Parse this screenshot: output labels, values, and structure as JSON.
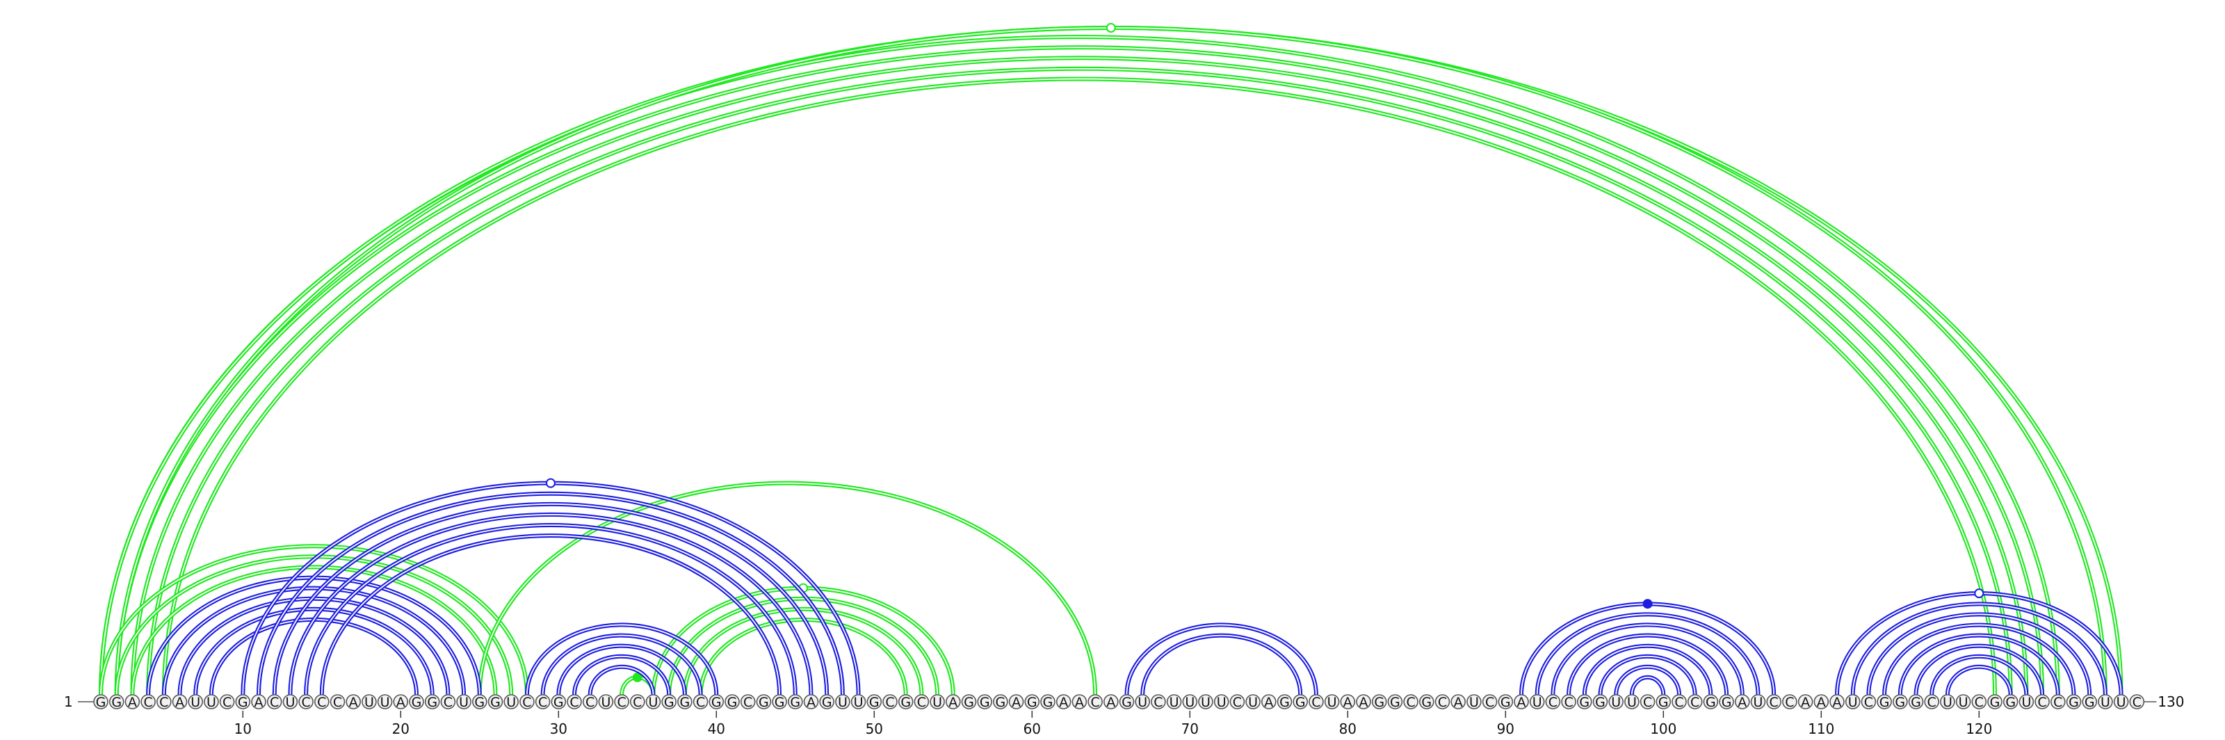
{
  "sequence": "GGACCAUUCGACUCCCAUUAGGCUGGUCCGCCUCCUGGCGGCGGGAGUUGCGCUAGGGAGGAACAGUCUUUUCUAGGCUAAGGCGCAUCGAUCCGGUUCGCCGGAUCCAAAUCGGGCUUCGGUCCGGUUC",
  "labels": {
    "start": "1",
    "end": "130"
  },
  "ticks": [
    10,
    20,
    30,
    40,
    50,
    60,
    70,
    80,
    90,
    100,
    110,
    120
  ],
  "colors": {
    "green": "#1ee81e",
    "blue": "#1d1de0"
  },
  "arc_groups": [
    {
      "name": "green-outer",
      "color": "green",
      "lines": 2,
      "marker": "hollow",
      "pairs": [
        [
          1,
          125
        ],
        [
          2,
          124
        ],
        [
          3,
          123
        ],
        [
          4,
          122
        ],
        [
          5,
          121
        ],
        [
          1,
          129
        ],
        [
          2,
          128
        ]
      ]
    },
    {
      "name": "green-left-stem",
      "color": "green",
      "lines": 2,
      "marker": null,
      "pairs": [
        [
          1,
          28
        ],
        [
          2,
          27
        ],
        [
          3,
          26
        ]
      ]
    },
    {
      "name": "green-long-right",
      "color": "green",
      "lines": 2,
      "marker": null,
      "pairs": [
        [
          25,
          64
        ]
      ]
    },
    {
      "name": "green-mid-stem",
      "color": "green",
      "lines": 2,
      "marker": "hollow",
      "pairs": [
        [
          36,
          55
        ],
        [
          37,
          54
        ],
        [
          38,
          53
        ],
        [
          39,
          52
        ]
      ]
    },
    {
      "name": "green-hairpin",
      "color": "green",
      "lines": 2,
      "marker": "filled",
      "pairs": [
        [
          34,
          36
        ]
      ]
    },
    {
      "name": "blue-left-hairpin",
      "color": "blue",
      "lines": 2,
      "marker": null,
      "pairs": [
        [
          4,
          25
        ],
        [
          5,
          24
        ],
        [
          6,
          23
        ],
        [
          7,
          22
        ],
        [
          8,
          21
        ]
      ]
    },
    {
      "name": "blue-pseudoknot",
      "color": "blue",
      "lines": 2,
      "marker": "hollow",
      "pairs": [
        [
          10,
          49
        ],
        [
          11,
          48
        ],
        [
          12,
          47
        ],
        [
          13,
          46
        ],
        [
          14,
          45
        ],
        [
          15,
          44
        ]
      ]
    },
    {
      "name": "blue-center-hairpin",
      "color": "blue",
      "lines": 2,
      "marker": null,
      "pairs": [
        [
          28,
          40
        ],
        [
          29,
          39
        ],
        [
          30,
          38
        ],
        [
          31,
          37
        ],
        [
          32,
          36
        ]
      ]
    },
    {
      "name": "blue-loop-70",
      "color": "blue",
      "lines": 2,
      "marker": null,
      "pairs": [
        [
          66,
          78
        ],
        [
          67,
          77
        ]
      ]
    },
    {
      "name": "blue-hairpin-98",
      "color": "blue",
      "lines": 2,
      "marker": "filled",
      "pairs": [
        [
          91,
          107
        ],
        [
          92,
          106
        ],
        [
          93,
          105
        ],
        [
          94,
          104
        ],
        [
          95,
          103
        ],
        [
          96,
          102
        ],
        [
          97,
          101
        ],
        [
          98,
          100
        ]
      ]
    },
    {
      "name": "blue-hairpin-120",
      "color": "blue",
      "lines": 2,
      "marker": "hollow",
      "pairs": [
        [
          111,
          129
        ],
        [
          112,
          128
        ],
        [
          113,
          127
        ],
        [
          114,
          126
        ],
        [
          115,
          125
        ],
        [
          116,
          124
        ],
        [
          117,
          123
        ],
        [
          118,
          122
        ]
      ]
    }
  ]
}
